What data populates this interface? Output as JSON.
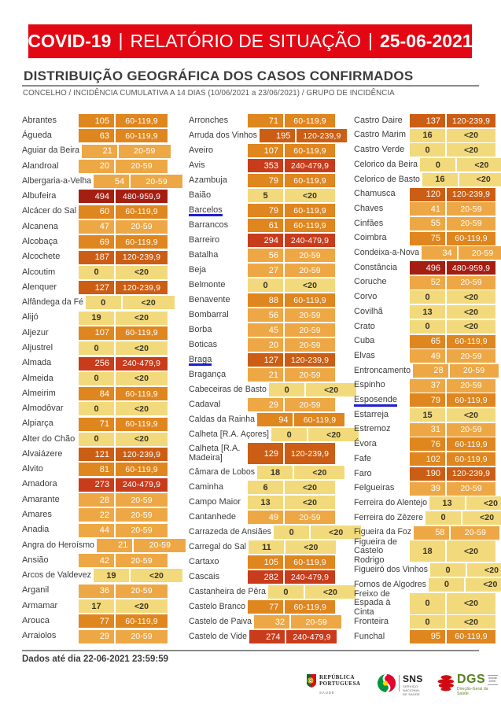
{
  "banner": {
    "bg": "#E30613",
    "fg": "#FFFFFF",
    "separator": "|",
    "segments": [
      {
        "text": "COVID-19",
        "bold": true
      },
      {
        "text": "RELATÓRIO DE SITUAÇÃO",
        "bold": false
      },
      {
        "text": "25-06-2021",
        "bold": true
      }
    ]
  },
  "section": {
    "title": "DISTRIBUIÇÃO GEOGRÁFICA DOS CASOS CONFIRMADOS",
    "subtitle": "CONCELHO / INCIDÊNCIA CUMULATIVA A 14 DIAS (10/06/2021 a 23/06/2021) / GRUPO DE INCIDÊNCIA"
  },
  "underline_color": "#1E1ED2",
  "bands": {
    "<20": {
      "bg": "#F2DA7C",
      "fg": "#3A3424",
      "dark": true
    },
    "20-59": {
      "bg": "#EDA845",
      "fg": "#FFFFFF",
      "dark": false
    },
    "60-119,9": {
      "bg": "#DF861E",
      "fg": "#FFFFFF",
      "dark": false
    },
    "120-239,9": {
      "bg": "#CB5E14",
      "fg": "#FFFFFF",
      "dark": false
    },
    "240-479,9": {
      "bg": "#C83C1C",
      "fg": "#FFFFFF",
      "dark": false
    },
    "480-959,9": {
      "bg": "#A51E12",
      "fg": "#FFFFFF",
      "dark": false
    }
  },
  "columns": [
    {
      "rows": [
        {
          "n": "Abrantes",
          "v": 105,
          "b": "60-119,9"
        },
        {
          "n": "Águeda",
          "v": 63,
          "b": "60-119,9"
        },
        {
          "n": "Aguiar da Beira",
          "v": 21,
          "b": "20-59"
        },
        {
          "n": "Alandroal",
          "v": 20,
          "b": "20-59"
        },
        {
          "n": "Albergaria-a-Velha",
          "v": 54,
          "b": "20-59"
        },
        {
          "n": "Albufeira",
          "v": 494,
          "b": "480-959,9"
        },
        {
          "n": "Alcácer do Sal",
          "v": 60,
          "b": "60-119,9"
        },
        {
          "n": "Alcanena",
          "v": 47,
          "b": "20-59"
        },
        {
          "n": "Alcobaça",
          "v": 69,
          "b": "60-119,9"
        },
        {
          "n": "Alcochete",
          "v": 187,
          "b": "120-239,9"
        },
        {
          "n": "Alcoutim",
          "v": 0,
          "b": "<20"
        },
        {
          "n": "Alenquer",
          "v": 127,
          "b": "120-239,9"
        },
        {
          "n": "Alfândega da Fé",
          "v": 0,
          "b": "<20"
        },
        {
          "n": "Alijó",
          "v": 19,
          "b": "<20"
        },
        {
          "n": "Aljezur",
          "v": 107,
          "b": "60-119,9"
        },
        {
          "n": "Aljustrel",
          "v": 0,
          "b": "<20"
        },
        {
          "n": "Almada",
          "v": 256,
          "b": "240-479,9"
        },
        {
          "n": "Almeida",
          "v": 0,
          "b": "<20"
        },
        {
          "n": "Almeirim",
          "v": 84,
          "b": "60-119,9"
        },
        {
          "n": "Almodôvar",
          "v": 0,
          "b": "<20"
        },
        {
          "n": "Alpiarça",
          "v": 71,
          "b": "60-119,9"
        },
        {
          "n": "Alter do Chão",
          "v": 0,
          "b": "<20"
        },
        {
          "n": "Alvaiázere",
          "v": 121,
          "b": "120-239,9"
        },
        {
          "n": "Alvito",
          "v": 81,
          "b": "60-119,9"
        },
        {
          "n": "Amadora",
          "v": 273,
          "b": "240-479,9"
        },
        {
          "n": "Amarante",
          "v": 28,
          "b": "20-59"
        },
        {
          "n": "Amares",
          "v": 22,
          "b": "20-59"
        },
        {
          "n": "Anadia",
          "v": 44,
          "b": "20-59"
        },
        {
          "n": "Angra do Heroísmo",
          "v": 21,
          "b": "20-59"
        },
        {
          "n": "Ansião",
          "v": 42,
          "b": "20-59"
        },
        {
          "n": "Arcos de Valdevez",
          "v": 19,
          "b": "<20"
        },
        {
          "n": "Arganil",
          "v": 36,
          "b": "20-59"
        },
        {
          "n": "Armamar",
          "v": 17,
          "b": "<20"
        },
        {
          "n": "Arouca",
          "v": 77,
          "b": "60-119,9"
        },
        {
          "n": "Arraiolos",
          "v": 29,
          "b": "20-59"
        }
      ]
    },
    {
      "rows": [
        {
          "n": "Arronches",
          "v": 71,
          "b": "60-119,9"
        },
        {
          "n": "Arruda dos Vinhos",
          "v": 195,
          "b": "120-239,9"
        },
        {
          "n": "Aveiro",
          "v": 107,
          "b": "60-119,9"
        },
        {
          "n": "Avis",
          "v": 353,
          "b": "240-479,9"
        },
        {
          "n": "Azambuja",
          "v": 79,
          "b": "60-119,9"
        },
        {
          "n": "Baião",
          "v": 5,
          "b": "<20"
        },
        {
          "n": "Barcelos",
          "v": 79,
          "b": "60-119,9",
          "u": true
        },
        {
          "n": "Barrancos",
          "v": 61,
          "b": "60-119,9"
        },
        {
          "n": "Barreiro",
          "v": 294,
          "b": "240-479,9"
        },
        {
          "n": "Batalha",
          "v": 56,
          "b": "20-59"
        },
        {
          "n": "Beja",
          "v": 27,
          "b": "20-59"
        },
        {
          "n": "Belmonte",
          "v": 0,
          "b": "<20"
        },
        {
          "n": "Benavente",
          "v": 88,
          "b": "60-119,9"
        },
        {
          "n": "Bombarral",
          "v": 56,
          "b": "20-59"
        },
        {
          "n": "Borba",
          "v": 45,
          "b": "20-59"
        },
        {
          "n": "Boticas",
          "v": 20,
          "b": "20-59"
        },
        {
          "n": "Braga",
          "v": 127,
          "b": "120-239,9",
          "u": true
        },
        {
          "n": "Bragança",
          "v": 21,
          "b": "20-59"
        },
        {
          "n": "Cabeceiras de Basto",
          "v": 0,
          "b": "<20"
        },
        {
          "n": "Cadaval",
          "v": 29,
          "b": "20-59"
        },
        {
          "n": "Caldas da Rainha",
          "v": 94,
          "b": "60-119,9"
        },
        {
          "n": "Calheta [R.A. Açores]",
          "v": 0,
          "b": "<20"
        },
        {
          "n": "Calheta [R.A. Madeira]",
          "v": 129,
          "b": "120-239,9",
          "t": true
        },
        {
          "n": "Câmara de Lobos",
          "v": 18,
          "b": "<20"
        },
        {
          "n": "Caminha",
          "v": 6,
          "b": "<20"
        },
        {
          "n": "Campo Maior",
          "v": 13,
          "b": "<20"
        },
        {
          "n": "Cantanhede",
          "v": 49,
          "b": "20-59"
        },
        {
          "n": "Carrazeda de Ansiães",
          "v": 0,
          "b": "<20"
        },
        {
          "n": "Carregal do Sal",
          "v": 11,
          "b": "<20"
        },
        {
          "n": "Cartaxo",
          "v": 105,
          "b": "60-119,9"
        },
        {
          "n": "Cascais",
          "v": 282,
          "b": "240-479,9"
        },
        {
          "n": "Castanheira de Pêra",
          "v": 0,
          "b": "<20"
        },
        {
          "n": "Castelo Branco",
          "v": 77,
          "b": "60-119,9"
        },
        {
          "n": "Castelo de Paiva",
          "v": 32,
          "b": "20-59"
        },
        {
          "n": "Castelo de Vide",
          "v": 274,
          "b": "240-479,9"
        }
      ]
    },
    {
      "rows": [
        {
          "n": "Castro Daire",
          "v": 137,
          "b": "120-239,9"
        },
        {
          "n": "Castro Marim",
          "v": 16,
          "b": "<20"
        },
        {
          "n": "Castro Verde",
          "v": 0,
          "b": "<20"
        },
        {
          "n": "Celorico da Beira",
          "v": 0,
          "b": "<20"
        },
        {
          "n": "Celorico de Basto",
          "v": 16,
          "b": "<20"
        },
        {
          "n": "Chamusca",
          "v": 120,
          "b": "120-239,9"
        },
        {
          "n": "Chaves",
          "v": 41,
          "b": "20-59"
        },
        {
          "n": "Cinfães",
          "v": 55,
          "b": "20-59"
        },
        {
          "n": "Coimbra",
          "v": 75,
          "b": "60-119,9"
        },
        {
          "n": "Condeixa-a-Nova",
          "v": 34,
          "b": "20-59"
        },
        {
          "n": "Constância",
          "v": 496,
          "b": "480-959,9"
        },
        {
          "n": "Coruche",
          "v": 52,
          "b": "20-59"
        },
        {
          "n": "Corvo",
          "v": 0,
          "b": "<20"
        },
        {
          "n": "Covilhã",
          "v": 13,
          "b": "<20"
        },
        {
          "n": "Crato",
          "v": 0,
          "b": "<20"
        },
        {
          "n": "Cuba",
          "v": 65,
          "b": "60-119,9"
        },
        {
          "n": "Elvas",
          "v": 49,
          "b": "20-59"
        },
        {
          "n": "Entroncamento",
          "v": 28,
          "b": "20-59"
        },
        {
          "n": "Espinho",
          "v": 37,
          "b": "20-59"
        },
        {
          "n": "Esposende",
          "v": 79,
          "b": "60-119,9",
          "u": true
        },
        {
          "n": "Estarreja",
          "v": 15,
          "b": "<20"
        },
        {
          "n": "Estremoz",
          "v": 31,
          "b": "20-59"
        },
        {
          "n": "Évora",
          "v": 76,
          "b": "60-119,9"
        },
        {
          "n": "Fafe",
          "v": 102,
          "b": "60-119,9"
        },
        {
          "n": "Faro",
          "v": 190,
          "b": "120-239,9"
        },
        {
          "n": "Felgueiras",
          "v": 39,
          "b": "20-59"
        },
        {
          "n": "Ferreira do Alentejo",
          "v": 13,
          "b": "<20"
        },
        {
          "n": "Ferreira do Zêzere",
          "v": 0,
          "b": "<20"
        },
        {
          "n": "Figueira da Foz",
          "v": 58,
          "b": "20-59"
        },
        {
          "n": "Figueira de Castelo Rodrigo",
          "v": 18,
          "b": "<20",
          "t": true
        },
        {
          "n": "Figueiró dos Vinhos",
          "v": 0,
          "b": "<20"
        },
        {
          "n": "Fornos de Algodres",
          "v": 0,
          "b": "<20"
        },
        {
          "n": "Freixo de Espada à Cinta",
          "v": 0,
          "b": "<20",
          "t": true
        },
        {
          "n": "Fronteira",
          "v": 0,
          "b": "<20"
        },
        {
          "n": "Funchal",
          "v": 95,
          "b": "60-119,9"
        }
      ]
    }
  ],
  "footer": {
    "note": "Dados até dia 22-06-2021 23:59:59"
  },
  "logos": {
    "republica": {
      "line1": "REPÚBLICA",
      "line2": "PORTUGUESA",
      "department": "SAÚDE"
    },
    "sns": {
      "acronym": "SNS",
      "subtitle1": "SERVIÇO NACIONAL",
      "subtitle2": "DE SAÚDE"
    },
    "dgs": {
      "acronym": "DGS",
      "since_label": "desde",
      "since_year": "1899",
      "subtitle": "Direção-Geral da Saúde"
    }
  }
}
